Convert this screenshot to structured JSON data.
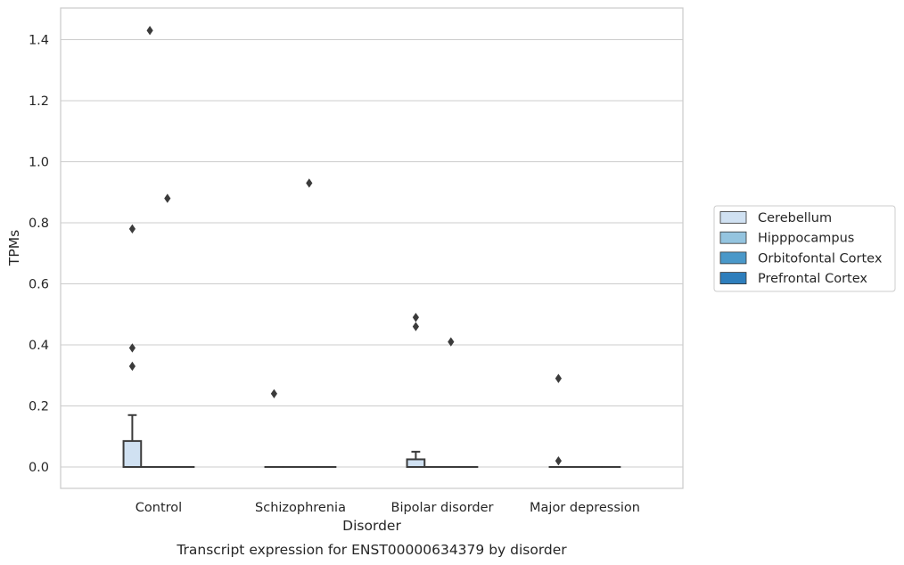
{
  "chart_data": {
    "type": "box",
    "title": "",
    "caption": "Transcript expression for ENST00000634379 by disorder",
    "xlabel": "Disorder",
    "ylabel": "TPMs",
    "ylim": [
      -0.07,
      1.51
    ],
    "yticks": [
      0.0,
      0.2,
      0.4,
      0.6,
      0.8,
      1.0,
      1.2,
      1.4
    ],
    "categories": [
      "Control",
      "Schizophrenia",
      "Bipolar disorder",
      "Major depression"
    ],
    "grid": "horizontal",
    "legend_position": "right",
    "series": [
      {
        "name": "Cerebellum",
        "color": "#d0e1f2",
        "boxes": [
          {
            "q1": 0.0,
            "median": 0.0,
            "q3": 0.085,
            "whisker_low": 0.0,
            "whisker_high": 0.17,
            "outliers": [
              0.33,
              0.39,
              0.78
            ]
          },
          {
            "q1": 0.0,
            "median": 0.0,
            "q3": 0.0,
            "whisker_low": 0.0,
            "whisker_high": 0.0,
            "outliers": [
              0.24
            ]
          },
          {
            "q1": 0.0,
            "median": 0.0,
            "q3": 0.025,
            "whisker_low": 0.0,
            "whisker_high": 0.05,
            "outliers": [
              0.46,
              0.49
            ]
          },
          {
            "q1": 0.0,
            "median": 0.0,
            "q3": 0.0,
            "whisker_low": 0.0,
            "whisker_high": 0.0,
            "outliers": [
              0.02,
              0.29
            ]
          }
        ]
      },
      {
        "name": "Hipppocampus",
        "color": "#94c4df",
        "boxes": [
          {
            "q1": 0.0,
            "median": 0.0,
            "q3": 0.0,
            "whisker_low": 0.0,
            "whisker_high": 0.0,
            "outliers": [
              1.43
            ]
          },
          {
            "q1": 0.0,
            "median": 0.0,
            "q3": 0.0,
            "whisker_low": 0.0,
            "whisker_high": 0.0,
            "outliers": []
          },
          {
            "q1": 0.0,
            "median": 0.0,
            "q3": 0.0,
            "whisker_low": 0.0,
            "whisker_high": 0.0,
            "outliers": []
          },
          {
            "q1": 0.0,
            "median": 0.0,
            "q3": 0.0,
            "whisker_low": 0.0,
            "whisker_high": 0.0,
            "outliers": []
          }
        ]
      },
      {
        "name": "Orbitofontal Cortex",
        "color": "#4a98c9",
        "boxes": [
          {
            "q1": 0.0,
            "median": 0.0,
            "q3": 0.0,
            "whisker_low": 0.0,
            "whisker_high": 0.0,
            "outliers": [
              0.88
            ]
          },
          {
            "q1": 0.0,
            "median": 0.0,
            "q3": 0.0,
            "whisker_low": 0.0,
            "whisker_high": 0.0,
            "outliers": [
              0.93
            ]
          },
          {
            "q1": 0.0,
            "median": 0.0,
            "q3": 0.0,
            "whisker_low": 0.0,
            "whisker_high": 0.0,
            "outliers": [
              0.41
            ]
          },
          {
            "q1": 0.0,
            "median": 0.0,
            "q3": 0.0,
            "whisker_low": 0.0,
            "whisker_high": 0.0,
            "outliers": []
          }
        ]
      },
      {
        "name": "Prefrontal Cortex",
        "color": "#2e7ebc",
        "boxes": [
          {
            "q1": 0.0,
            "median": 0.0,
            "q3": 0.0,
            "whisker_low": 0.0,
            "whisker_high": 0.0,
            "outliers": []
          },
          {
            "q1": 0.0,
            "median": 0.0,
            "q3": 0.0,
            "whisker_low": 0.0,
            "whisker_high": 0.0,
            "outliers": []
          },
          {
            "q1": 0.0,
            "median": 0.0,
            "q3": 0.0,
            "whisker_low": 0.0,
            "whisker_high": 0.0,
            "outliers": []
          },
          {
            "q1": 0.0,
            "median": 0.0,
            "q3": 0.0,
            "whisker_low": 0.0,
            "whisker_high": 0.0,
            "outliers": []
          }
        ]
      }
    ]
  }
}
